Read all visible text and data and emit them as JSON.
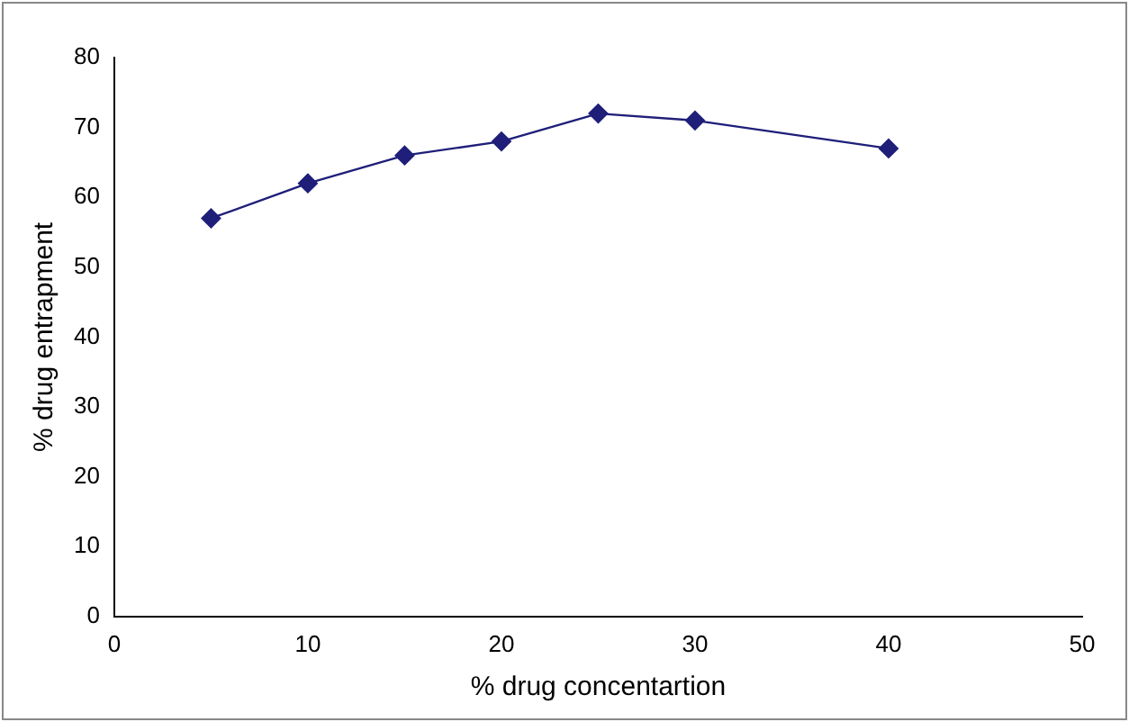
{
  "chart_data": {
    "type": "line",
    "xlabel": "% drug concentartion",
    "ylabel": "% drug entrapment",
    "x": [
      5,
      10,
      15,
      20,
      25,
      30,
      40
    ],
    "series": [
      {
        "color": "#1f1f7a",
        "values": [
          57,
          62,
          66,
          68,
          72,
          71,
          67
        ]
      }
    ],
    "xlim": [
      0,
      50
    ],
    "xticks": [
      0,
      10,
      20,
      30,
      40,
      50
    ],
    "ylim": [
      0,
      80
    ],
    "yticks": [
      0,
      10,
      20,
      30,
      40,
      50,
      60,
      70,
      80
    ],
    "grid": false,
    "legend": false,
    "marker": "diamond",
    "line_style": "solid"
  }
}
